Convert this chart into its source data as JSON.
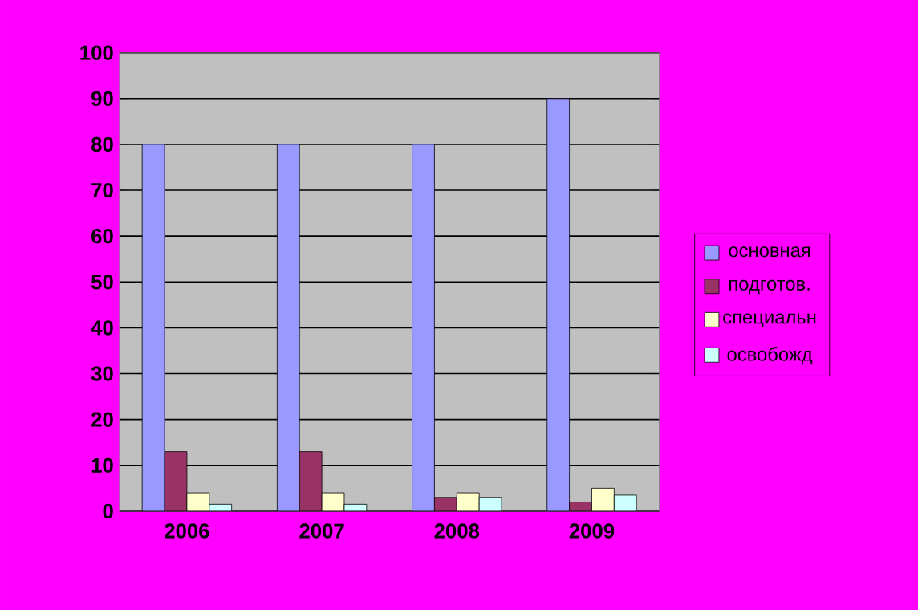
{
  "chart_data": {
    "type": "bar",
    "categories": [
      "2006",
      "2007",
      "2008",
      "2009"
    ],
    "series": [
      {
        "name": "основная",
        "color": "#9999ff",
        "values": [
          80,
          80,
          80,
          90
        ]
      },
      {
        "name": "подготов.",
        "color": "#993366",
        "values": [
          13,
          13,
          3,
          2
        ]
      },
      {
        "name": "специальн",
        "color": "#ffffcc",
        "values": [
          4,
          4,
          4,
          5
        ]
      },
      {
        "name": "освобожд",
        "color": "#ccffff",
        "values": [
          1.5,
          1.5,
          3,
          3.5
        ]
      }
    ],
    "ylim": [
      0,
      100
    ],
    "yticks": [
      0,
      10,
      20,
      30,
      40,
      50,
      60,
      70,
      80,
      90,
      100
    ],
    "grid": "y",
    "legend": "right"
  }
}
